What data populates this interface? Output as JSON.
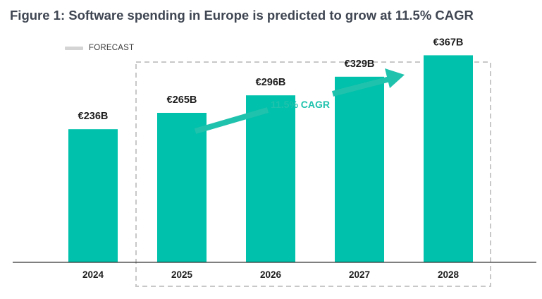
{
  "title": "Figure 1: Software spending in Europe is predicted to grow at 11.5% CAGR",
  "legend": {
    "label": "FORECAST"
  },
  "colors": {
    "bar": "#00c1ab",
    "arrow": "#1fc2ad",
    "forecast_box": "#c8c8c8",
    "axis": "#333333"
  },
  "chart_data": {
    "type": "bar",
    "categories": [
      "2024",
      "2025",
      "2026",
      "2027",
      "2028"
    ],
    "values": [
      236,
      265,
      296,
      329,
      367
    ],
    "value_labels": [
      "€236B",
      "€265B",
      "€296B",
      "€329B",
      "€367B"
    ],
    "forecast_categories": [
      "2025",
      "2026",
      "2027",
      "2028"
    ],
    "unit": "€B",
    "annotation": "11.5% CAGR",
    "title": "Figure 1: Software spending in Europe is predicted to grow at 11.5% CAGR",
    "xlabel": "",
    "ylabel": "",
    "grid": false,
    "legend_position": "top-left"
  }
}
